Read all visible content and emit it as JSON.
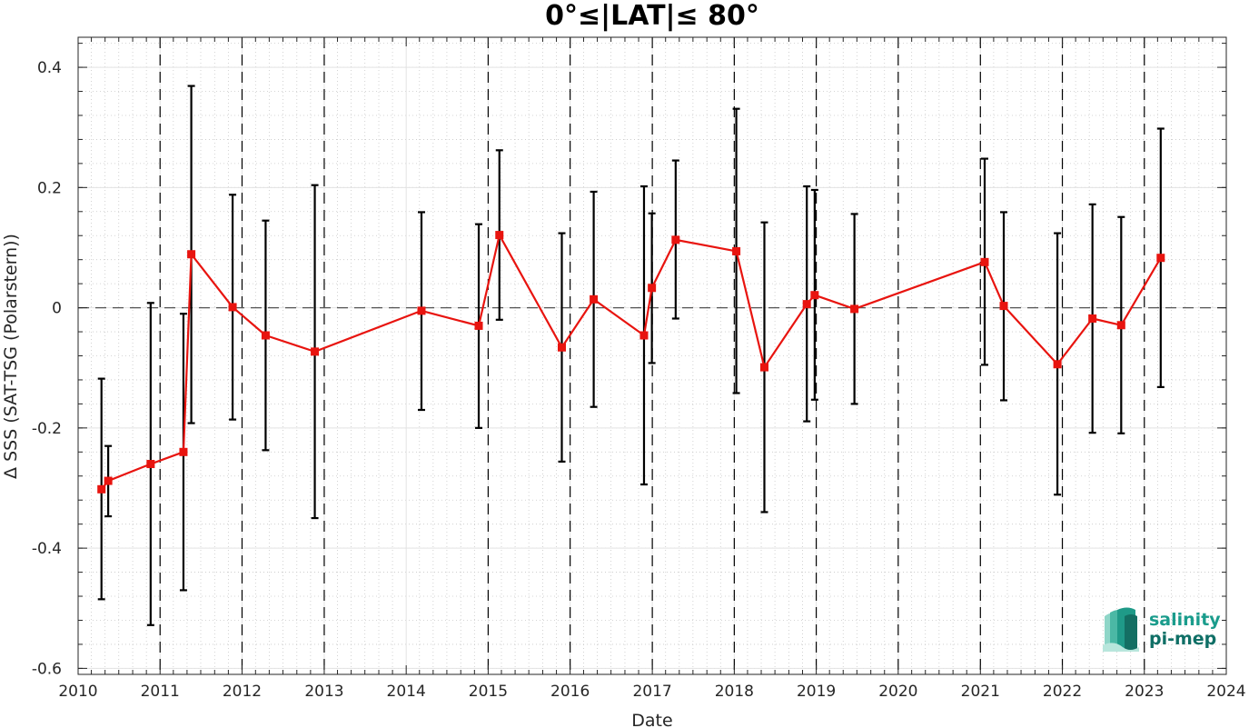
{
  "chart_data": {
    "type": "line",
    "title": "0°≤|LAT|≤ 80°",
    "xlabel": "Date",
    "ylabel": "Δ SSS (SAT-TSG (Polarstern))",
    "xlim": [
      "2010-01-01",
      "2024-01-01"
    ],
    "ylim": [
      -0.61,
      0.45
    ],
    "x_ticks": [
      "2010",
      "2011",
      "2012",
      "2013",
      "2014",
      "2015",
      "2016",
      "2017",
      "2018",
      "2019",
      "2020",
      "2021",
      "2022",
      "2023",
      "2024"
    ],
    "y_ticks": [
      {
        "value": 0.4,
        "label": "0.4"
      },
      {
        "value": 0.2,
        "label": "0.2"
      },
      {
        "value": 0.0,
        "label": "0"
      },
      {
        "value": -0.2,
        "label": "-0.2"
      },
      {
        "value": -0.4,
        "label": "-0.4"
      },
      {
        "value": -0.6,
        "label": "-0.6"
      }
    ],
    "grid": true,
    "reference_line_y": 0,
    "year_boundaries": [
      "2011-01-01",
      "2012-01-01",
      "2013-01-01",
      "2015-01-01",
      "2016-01-01",
      "2017-01-01",
      "2018-01-01",
      "2019-01-01",
      "2020-01-01",
      "2021-01-01",
      "2022-01-01",
      "2023-01-01"
    ],
    "series": [
      {
        "color": "#e8140f",
        "errorbar_color": "#000000",
        "points": [
          {
            "date": "2010-04-15",
            "mean": -0.302,
            "low": -0.485,
            "high": -0.118
          },
          {
            "date": "2010-05-15",
            "mean": -0.288,
            "low": -0.347,
            "high": -0.23
          },
          {
            "date": "2010-11-20",
            "mean": -0.26,
            "low": -0.528,
            "high": 0.008
          },
          {
            "date": "2011-04-15",
            "mean": -0.24,
            "low": -0.47,
            "high": -0.01
          },
          {
            "date": "2011-05-20",
            "mean": 0.089,
            "low": -0.192,
            "high": 0.369
          },
          {
            "date": "2011-11-20",
            "mean": 0.001,
            "low": -0.186,
            "high": 0.188
          },
          {
            "date": "2012-04-15",
            "mean": -0.046,
            "low": -0.237,
            "high": 0.145
          },
          {
            "date": "2012-11-20",
            "mean": -0.073,
            "low": -0.35,
            "high": 0.204
          },
          {
            "date": "2014-03-10",
            "mean": -0.005,
            "low": -0.17,
            "high": 0.159
          },
          {
            "date": "2014-11-20",
            "mean": -0.03,
            "low": -0.2,
            "high": 0.139
          },
          {
            "date": "2015-02-20",
            "mean": 0.121,
            "low": -0.02,
            "high": 0.262
          },
          {
            "date": "2015-11-25",
            "mean": -0.066,
            "low": -0.256,
            "high": 0.124
          },
          {
            "date": "2016-04-15",
            "mean": 0.014,
            "low": -0.165,
            "high": 0.193
          },
          {
            "date": "2016-11-25",
            "mean": -0.046,
            "low": -0.294,
            "high": 0.202
          },
          {
            "date": "2016-12-30",
            "mean": 0.033,
            "low": -0.092,
            "high": 0.157
          },
          {
            "date": "2017-04-15",
            "mean": 0.113,
            "low": -0.018,
            "high": 0.245
          },
          {
            "date": "2018-01-10",
            "mean": 0.094,
            "low": -0.142,
            "high": 0.331
          },
          {
            "date": "2018-05-15",
            "mean": -0.099,
            "low": -0.34,
            "high": 0.142
          },
          {
            "date": "2018-11-20",
            "mean": 0.006,
            "low": -0.189,
            "high": 0.202
          },
          {
            "date": "2018-12-25",
            "mean": 0.021,
            "low": -0.153,
            "high": 0.196
          },
          {
            "date": "2019-06-20",
            "mean": -0.002,
            "low": -0.16,
            "high": 0.156
          },
          {
            "date": "2021-01-20",
            "mean": 0.076,
            "low": -0.095,
            "high": 0.248
          },
          {
            "date": "2021-04-15",
            "mean": 0.003,
            "low": -0.154,
            "high": 0.159
          },
          {
            "date": "2021-12-10",
            "mean": -0.094,
            "low": -0.311,
            "high": 0.124
          },
          {
            "date": "2022-05-15",
            "mean": -0.018,
            "low": -0.208,
            "high": 0.172
          },
          {
            "date": "2022-09-20",
            "mean": -0.029,
            "low": -0.209,
            "high": 0.151
          },
          {
            "date": "2023-03-15",
            "mean": 0.083,
            "low": -0.132,
            "high": 0.298
          }
        ]
      }
    ]
  },
  "logo": {
    "line1": "salinity",
    "line2": "pi-mep",
    "color": "#1a9c8c"
  }
}
